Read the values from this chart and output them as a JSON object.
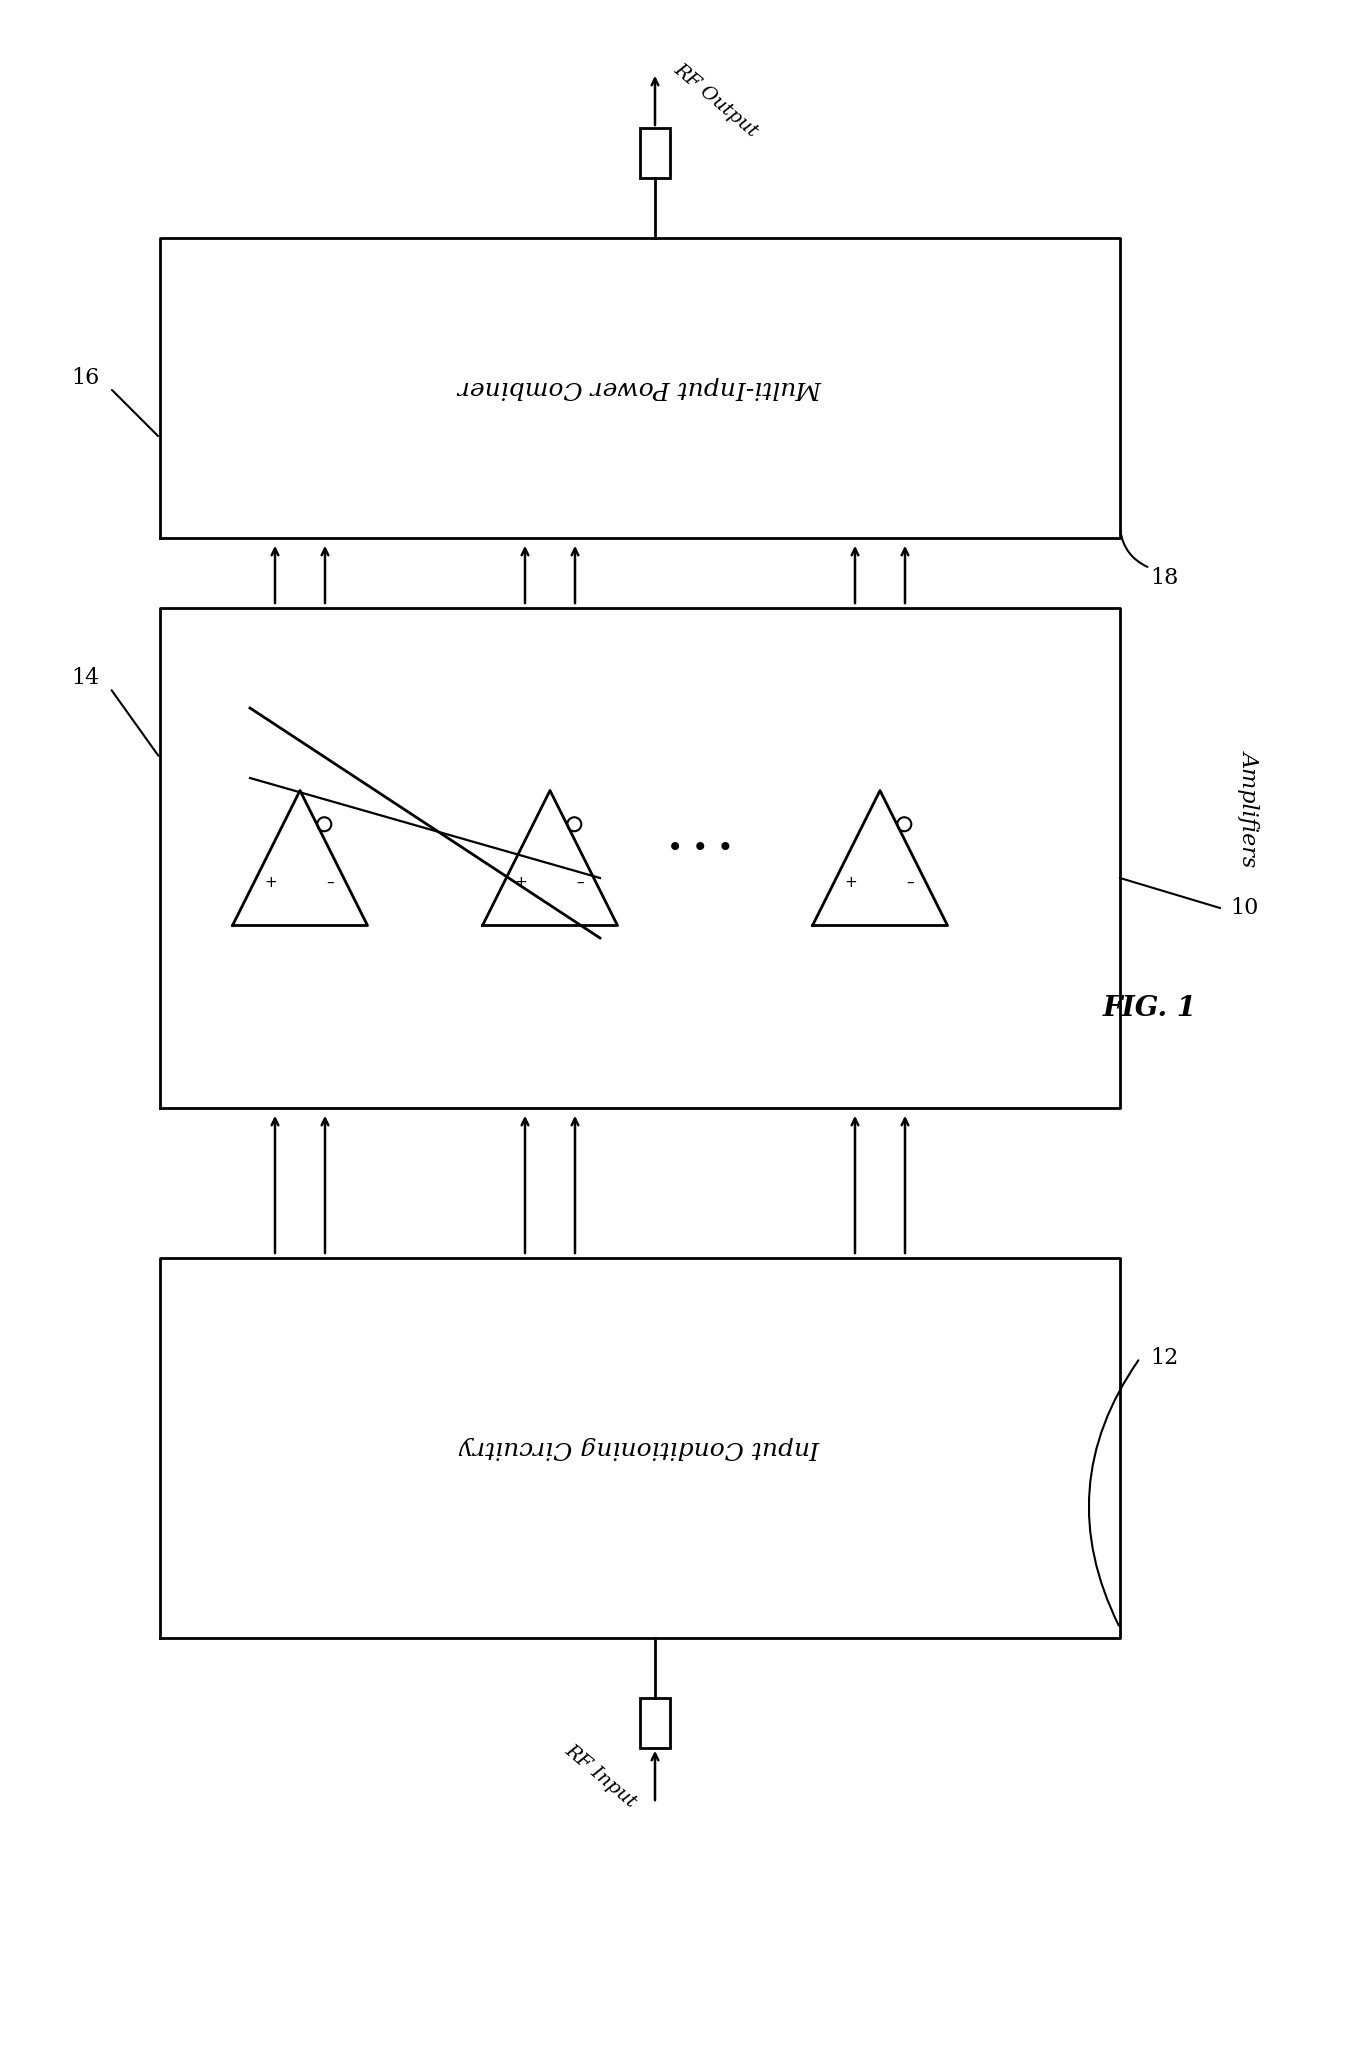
{
  "bg_color": "#ffffff",
  "line_color": "#000000",
  "fig_label": "FIG. 1",
  "label_16": "16",
  "label_14": "14",
  "label_18": "18",
  "label_12": "12",
  "label_10": "10",
  "label_amplifiers": "Amplifiers",
  "combiner_text": "Multi-Input Power Combiner",
  "input_cond_text": "Input Conditioning Circuitry",
  "rf_output_text": "RF Output",
  "rf_input_text": "RF Input"
}
